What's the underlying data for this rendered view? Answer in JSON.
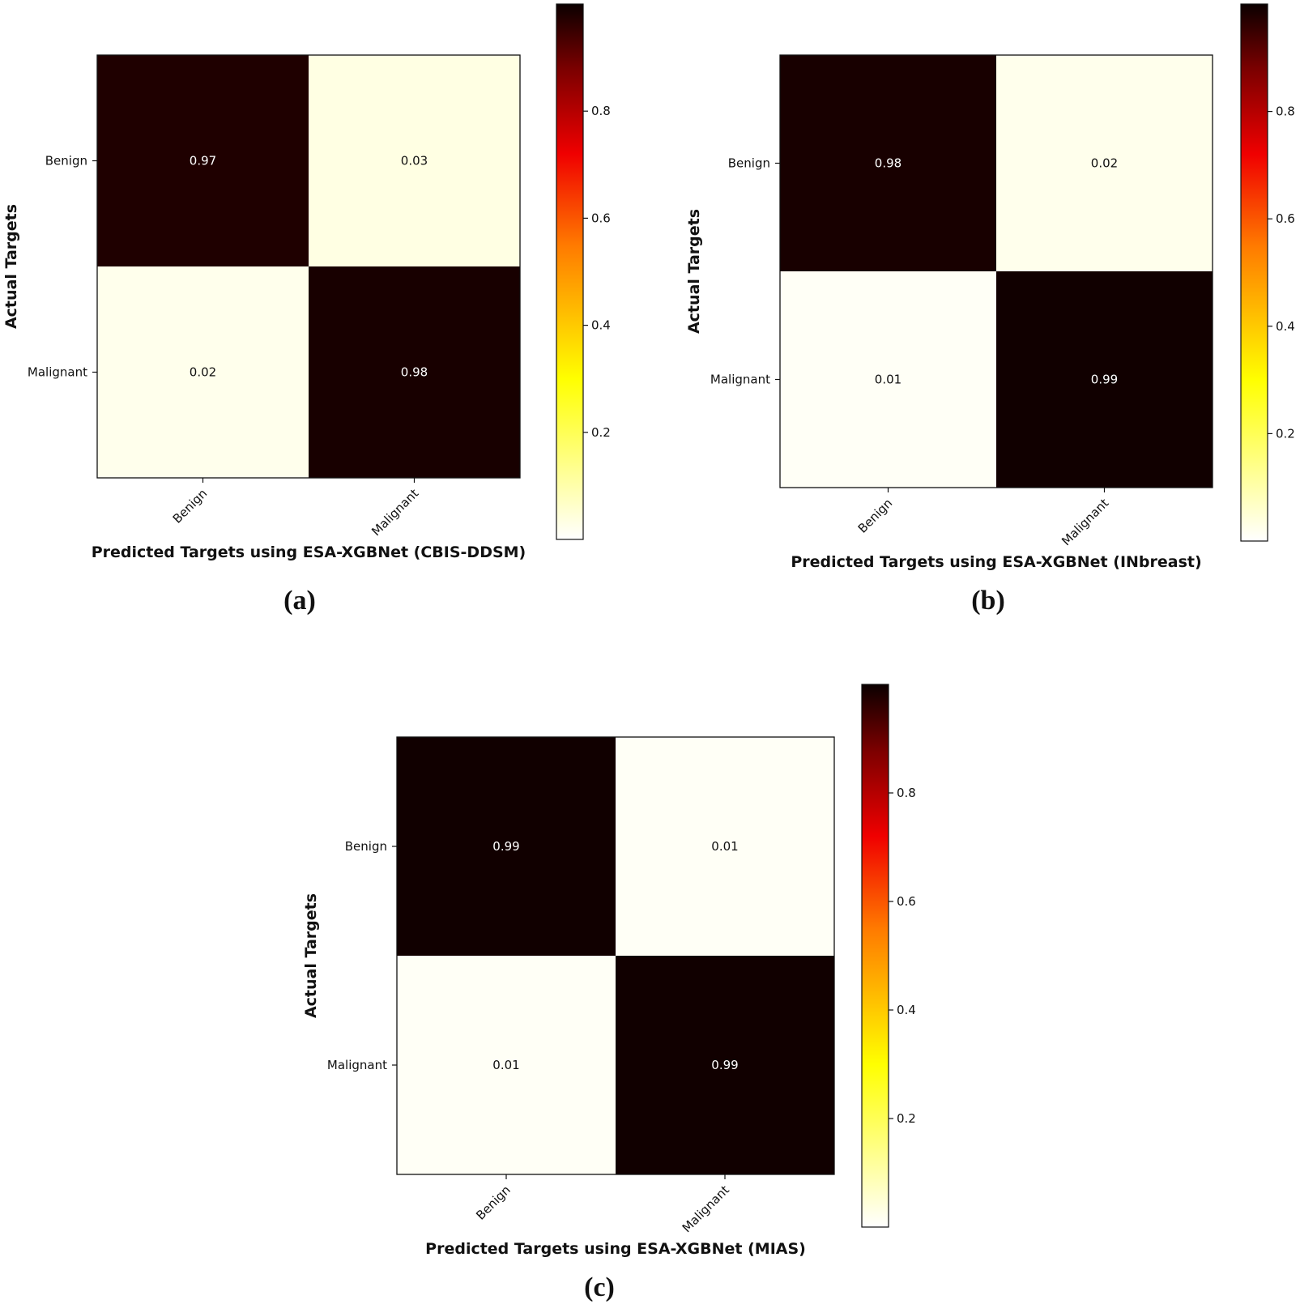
{
  "chart_data": [
    {
      "type": "heatmap",
      "panel_label": "(a)",
      "xlabel": "Predicted Targets using ESA-XGBNet (CBIS-DDSM)",
      "ylabel": "Actual Targets",
      "x_categories": [
        "Benign",
        "Malignant"
      ],
      "y_categories": [
        "Benign",
        "Malignant"
      ],
      "values": [
        [
          0.97,
          0.03
        ],
        [
          0.02,
          0.98
        ]
      ],
      "value_labels": [
        [
          "0.97",
          "0.03"
        ],
        [
          "0.02",
          "0.98"
        ]
      ],
      "colormap": "hot_r",
      "colorbar_ticks": [
        "0.2",
        "0.4",
        "0.6",
        "0.8"
      ]
    },
    {
      "type": "heatmap",
      "panel_label": "(b)",
      "xlabel": "Predicted Targets using ESA-XGBNet (INbreast)",
      "ylabel": "Actual Targets",
      "x_categories": [
        "Benign",
        "Malignant"
      ],
      "y_categories": [
        "Benign",
        "Malignant"
      ],
      "values": [
        [
          0.98,
          0.02
        ],
        [
          0.01,
          0.99
        ]
      ],
      "value_labels": [
        [
          "0.98",
          "0.02"
        ],
        [
          "0.01",
          "0.99"
        ]
      ],
      "colormap": "hot_r",
      "colorbar_ticks": [
        "0.2",
        "0.4",
        "0.6",
        "0.8"
      ]
    },
    {
      "type": "heatmap",
      "panel_label": "(c)",
      "xlabel": "Predicted Targets using ESA-XGBNet (MIAS)",
      "ylabel": "Actual Targets",
      "x_categories": [
        "Benign",
        "Malignant"
      ],
      "y_categories": [
        "Benign",
        "Malignant"
      ],
      "values": [
        [
          0.99,
          0.01
        ],
        [
          0.01,
          0.99
        ]
      ],
      "value_labels": [
        [
          "0.99",
          "0.01"
        ],
        [
          "0.01",
          "0.99"
        ]
      ],
      "colormap": "hot_r",
      "colorbar_ticks": [
        "0.2",
        "0.4",
        "0.6",
        "0.8"
      ]
    }
  ]
}
